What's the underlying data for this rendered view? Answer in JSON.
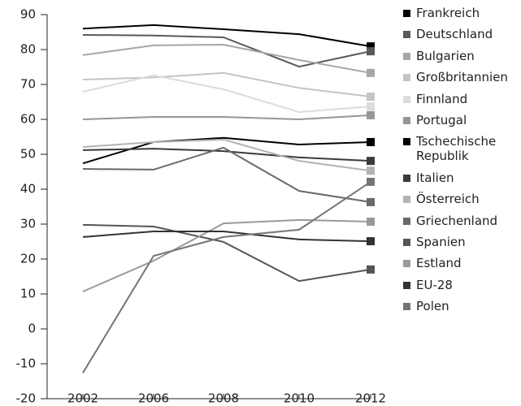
{
  "chart_data": {
    "type": "line",
    "categories": [
      "2002",
      "2006",
      "2008",
      "2010",
      "2012"
    ],
    "ylim": [
      -20,
      90
    ],
    "yticks": [
      -20,
      -10,
      0,
      10,
      20,
      30,
      40,
      50,
      60,
      70,
      80,
      90
    ],
    "series": [
      {
        "name": "Frankreich",
        "color": "#000000",
        "values": [
          86,
          87,
          85.8,
          84.4,
          80.9
        ]
      },
      {
        "name": "Deutschland",
        "color": "#595959",
        "values": [
          84.2,
          84,
          83.5,
          75.1,
          79.5
        ]
      },
      {
        "name": "Bulgarien",
        "color": "#a6a6a6",
        "values": [
          78.4,
          81.2,
          81.4,
          77,
          73.3
        ]
      },
      {
        "name": "Großbritannien",
        "color": "#c4c4c4",
        "values": [
          71.4,
          72,
          73.3,
          69,
          66.5
        ]
      },
      {
        "name": "Finnland",
        "color": "#dcdcdc",
        "values": [
          67.9,
          72.6,
          68.6,
          62.1,
          63.7
        ]
      },
      {
        "name": "Portugal",
        "color": "#969696",
        "values": [
          60,
          60.7,
          60.7,
          60,
          61.2
        ]
      },
      {
        "name": "Tschechische Republik",
        "color": "#000000",
        "values": [
          47.4,
          53.5,
          54.7,
          52.8,
          53.5
        ]
      },
      {
        "name": "Italien",
        "color": "#3a3a3a",
        "values": [
          51.2,
          51.6,
          50.9,
          49.1,
          48.1
        ]
      },
      {
        "name": "Österreich",
        "color": "#b3b3b3",
        "values": [
          52.1,
          53.5,
          54.2,
          48.1,
          45.3
        ]
      },
      {
        "name": "Griechenland",
        "color": "#6a6a6a",
        "values": [
          45.8,
          45.6,
          51.9,
          39.5,
          36.3
        ]
      },
      {
        "name": "Spanien",
        "color": "#555555",
        "values": [
          29.8,
          29.3,
          24.9,
          13.7,
          17
        ]
      },
      {
        "name": "Estland",
        "color": "#9a9a9a",
        "values": [
          10.7,
          19.5,
          30.2,
          31.2,
          30.7
        ]
      },
      {
        "name": "EU-28",
        "color": "#333333",
        "values": [
          26.3,
          27.9,
          27.9,
          25.6,
          25.1
        ]
      },
      {
        "name": "Polen",
        "color": "#757575",
        "values": [
          -12.6,
          20.9,
          26.3,
          28.4,
          42.1
        ]
      }
    ]
  }
}
